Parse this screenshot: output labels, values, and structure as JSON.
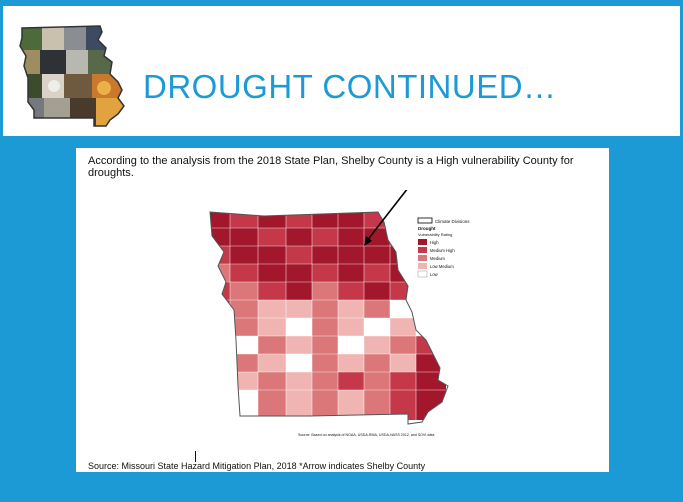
{
  "slide": {
    "title": "DROUGHT CONTINUED…",
    "intro": "According to the analysis from the 2018 State Plan, Shelby County is a High vulnerability County for droughts.",
    "source": "Source: Missouri State Hazard Mitigation Plan, 2018 *Arrow indicates Shelby County"
  },
  "map": {
    "legend": {
      "climate_divisions": "Climate Divisions",
      "heading": "Drought",
      "subheading": "Vulnerability Rating",
      "items": [
        {
          "label": "High",
          "color": "#a3172d"
        },
        {
          "label": "Medium High",
          "color": "#c5384a"
        },
        {
          "label": "Medium",
          "color": "#dc7779"
        },
        {
          "label": "Low Medium",
          "color": "#f0b5b3"
        },
        {
          "label": "Low",
          "color": "#ffffff"
        }
      ]
    },
    "map_source": "Source: Based on analysis of NOAA, USDA-RMA, USDA-NASS 2012, and SOVI data"
  },
  "colors": {
    "accent": "#1c9ad6",
    "high": "#a3172d",
    "medium_high": "#c5384a",
    "medium": "#dc7779",
    "low_medium": "#f0b5b3",
    "low": "#ffffff"
  },
  "icons": {
    "logo": "missouri-collage-logo-icon"
  }
}
